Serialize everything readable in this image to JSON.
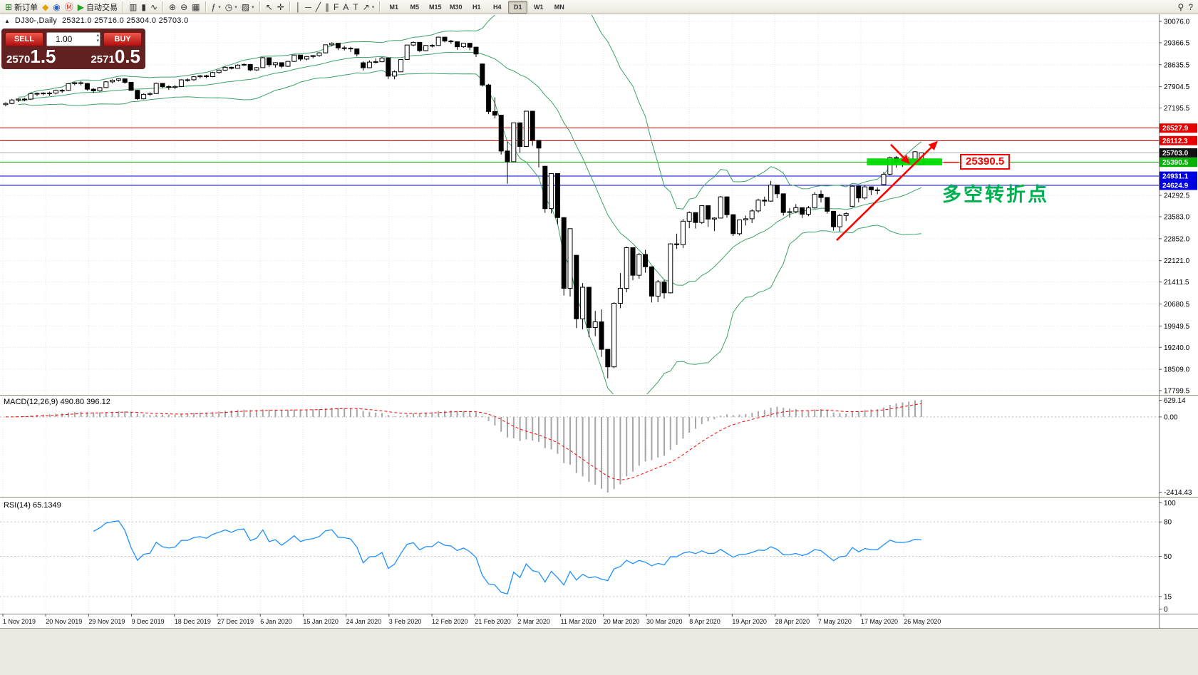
{
  "window": {
    "toolbar": {
      "items": [
        {
          "name": "new-order",
          "glyph": "⊞",
          "color": "#1A7A1A",
          "label": "新订单"
        },
        {
          "name": "mql5-market",
          "glyph": "◆",
          "color": "#E8A000"
        },
        {
          "name": "community",
          "glyph": "◉",
          "color": "#2860C8"
        },
        {
          "name": "metaquotes",
          "glyph": "Ⓜ",
          "color": "#D03020"
        },
        {
          "name": "auto-trading",
          "glyph": "▶",
          "color": "#18A818",
          "label": "自动交易"
        },
        {
          "sep": true
        },
        {
          "name": "bar-chart",
          "glyph": "▥"
        },
        {
          "name": "candlestick-chart",
          "glyph": "▮"
        },
        {
          "name": "line-chart",
          "glyph": "∿"
        },
        {
          "sep": true
        },
        {
          "name": "zoom-in",
          "glyph": "⊕"
        },
        {
          "name": "zoom-out",
          "glyph": "⊖"
        },
        {
          "name": "tile-windows",
          "glyph": "▦"
        },
        {
          "sep": true
        },
        {
          "name": "indicators",
          "glyph": "ƒ",
          "caret": true
        },
        {
          "name": "periods",
          "glyph": "◷",
          "caret": true
        },
        {
          "name": "templates",
          "glyph": "▨",
          "caret": true
        },
        {
          "sep": true
        },
        {
          "name": "cursor",
          "glyph": "↖"
        },
        {
          "name": "crosshair",
          "glyph": "✛"
        },
        {
          "sep": true
        },
        {
          "name": "vertical-line",
          "glyph": "│"
        },
        {
          "name": "horizontal-line",
          "glyph": "─"
        },
        {
          "name": "trendline",
          "glyph": "╱"
        },
        {
          "name": "channel",
          "glyph": "∥"
        },
        {
          "name": "fibonacci",
          "glyph": "F"
        },
        {
          "name": "text",
          "glyph": "A"
        },
        {
          "name": "text-label",
          "glyph": "T"
        },
        {
          "name": "arrows-tool",
          "glyph": "↗",
          "caret": true
        },
        {
          "sep": true
        }
      ],
      "timeframes": [
        "M1",
        "M5",
        "M15",
        "M30",
        "H1",
        "H4",
        "D1",
        "W1",
        "MN"
      ],
      "active_timeframe": "D1",
      "right_items": [
        {
          "name": "search",
          "glyph": "⚲"
        },
        {
          "name": "help",
          "glyph": "?"
        }
      ]
    },
    "header": {
      "symbol_period": "DJ30-,Daily",
      "ohlc": "25321.0 25716.0 25304.0 25703.0"
    },
    "order_panel": {
      "sell_label": "SELL",
      "buy_label": "BUY",
      "volume": "1.00",
      "bid_small": "2570",
      "bid_big": "1.5",
      "ask_small": "2571",
      "ask_big": "0.5"
    }
  },
  "chart_data": {
    "type": "candlestick",
    "symbol": "DJ30-",
    "timeframe": "Daily",
    "last_ohlc": {
      "open": 25321.0,
      "high": 25716.0,
      "low": 25304.0,
      "close": 25703.0
    },
    "price_axis_ticks": [
      30076.0,
      29366.5,
      28635.5,
      27904.5,
      27195.5,
      24292.5,
      23583.0,
      22852.0,
      22121.0,
      21411.5,
      20680.5,
      19949.5,
      19240.0,
      18509.0,
      17799.5
    ],
    "date_axis_ticks": [
      "1 Nov 2019",
      "20 Nov 2019",
      "29 Nov 2019",
      "9 Dec 2019",
      "18 Dec 2019",
      "27 Dec 2019",
      "6 Jan 2020",
      "15 Jan 2020",
      "24 Jan 2020",
      "3 Feb 2020",
      "12 Feb 2020",
      "21 Feb 2020",
      "2 Mar 2020",
      "11 Mar 2020",
      "20 Mar 2020",
      "30 Mar 2020",
      "8 Apr 2020",
      "19 Apr 2020",
      "28 Apr 2020",
      "7 May 2020",
      "17 May 2020",
      "26 May 2020"
    ],
    "levels": [
      {
        "price": 26527.9,
        "label": "26527.9",
        "color": "#E80000",
        "box": "#E80000"
      },
      {
        "price": 26112.3,
        "label": "26112.3",
        "color": "#E80000",
        "box": "#E80000"
      },
      {
        "price": 25703.0,
        "label": "25703.0",
        "color": "#A8ACB0",
        "box": "#111111"
      },
      {
        "price": 25390.5,
        "label": "25390.5",
        "color": "#00B400",
        "box": "#00B400"
      },
      {
        "price": 24931.1,
        "label": "24931.1",
        "color": "#0000E0",
        "box": "#0000E0"
      },
      {
        "price": 24624.9,
        "label": "24624.9",
        "color": "#0000E0",
        "box": "#0000E0"
      }
    ],
    "candles_ohlc": [
      [
        27310,
        27390,
        27250,
        27347
      ],
      [
        27347,
        27500,
        27320,
        27462
      ],
      [
        27462,
        27520,
        27400,
        27493
      ],
      [
        27493,
        27530,
        27420,
        27492
      ],
      [
        27492,
        27700,
        27460,
        27675
      ],
      [
        27675,
        27710,
        27590,
        27681
      ],
      [
        27681,
        27720,
        27620,
        27691
      ],
      [
        27691,
        27740,
        27600,
        27692
      ],
      [
        27692,
        27810,
        27650,
        27784
      ],
      [
        27784,
        27820,
        27700,
        27782
      ],
      [
        27782,
        28020,
        27760,
        28005
      ],
      [
        28005,
        28060,
        27950,
        28036
      ],
      [
        28036,
        28090,
        27950,
        28012
      ],
      [
        28012,
        28030,
        27770,
        27821
      ],
      [
        27821,
        27860,
        27700,
        27766
      ],
      [
        27766,
        27900,
        27730,
        27875
      ],
      [
        27875,
        28090,
        27860,
        28066
      ],
      [
        28066,
        28150,
        28020,
        28121
      ],
      [
        28121,
        28180,
        28080,
        28164
      ],
      [
        28164,
        28180,
        28000,
        28051
      ],
      [
        28051,
        28060,
        27770,
        27783
      ],
      [
        27783,
        27800,
        27460,
        27502
      ],
      [
        27502,
        27680,
        27480,
        27650
      ],
      [
        27650,
        27720,
        27600,
        27677
      ],
      [
        27677,
        28040,
        27660,
        28015
      ],
      [
        28015,
        28020,
        27850,
        27909
      ],
      [
        27909,
        27950,
        27800,
        27881
      ],
      [
        27881,
        27960,
        27820,
        27911
      ],
      [
        27911,
        28150,
        27890,
        28132
      ],
      [
        28132,
        28180,
        28070,
        28135
      ],
      [
        28135,
        28260,
        28100,
        28235
      ],
      [
        28235,
        28300,
        28180,
        28267
      ],
      [
        28267,
        28300,
        28190,
        28239
      ],
      [
        28239,
        28400,
        28220,
        28376
      ],
      [
        28376,
        28480,
        28340,
        28455
      ],
      [
        28455,
        28580,
        28430,
        28551
      ],
      [
        28551,
        28570,
        28480,
        28515
      ],
      [
        28515,
        28650,
        28500,
        28621
      ],
      [
        28621,
        28680,
        28600,
        28645
      ],
      [
        28645,
        28660,
        28420,
        28462
      ],
      [
        28462,
        28560,
        28430,
        28538
      ],
      [
        28538,
        28890,
        28530,
        28868
      ],
      [
        28868,
        28870,
        28560,
        28634
      ],
      [
        28634,
        28720,
        28540,
        28703
      ],
      [
        28703,
        28710,
        28520,
        28583
      ],
      [
        28583,
        28760,
        28560,
        28745
      ],
      [
        28745,
        28970,
        28730,
        28956
      ],
      [
        28956,
        28960,
        28760,
        28823
      ],
      [
        28823,
        28920,
        28780,
        28907
      ],
      [
        28907,
        28960,
        28850,
        28939
      ],
      [
        28939,
        29050,
        28900,
        29030
      ],
      [
        29030,
        29300,
        29010,
        29297
      ],
      [
        29297,
        29380,
        29250,
        29348
      ],
      [
        29348,
        29350,
        29120,
        29196
      ],
      [
        29196,
        29260,
        29110,
        29186
      ],
      [
        29186,
        29230,
        29060,
        29160
      ],
      [
        29160,
        29170,
        28910,
        28989
      ],
      [
        28700,
        28750,
        28440,
        28535
      ],
      [
        28535,
        28780,
        28520,
        28722
      ],
      [
        28722,
        28840,
        28680,
        28734
      ],
      [
        28734,
        28890,
        28720,
        28859
      ],
      [
        28859,
        28860,
        28160,
        28256
      ],
      [
        28256,
        28450,
        28150,
        28399
      ],
      [
        28399,
        28820,
        28390,
        28807
      ],
      [
        28807,
        29300,
        28800,
        29290
      ],
      [
        29290,
        29410,
        29250,
        29379
      ],
      [
        29379,
        29390,
        29060,
        29102
      ],
      [
        29102,
        29290,
        29080,
        29276
      ],
      [
        29276,
        29320,
        29210,
        29277
      ],
      [
        29277,
        29570,
        29260,
        29551
      ],
      [
        29551,
        29560,
        29380,
        29423
      ],
      [
        29423,
        29460,
        29330,
        29398
      ],
      [
        29398,
        29400,
        29130,
        29232
      ],
      [
        29232,
        29360,
        29200,
        29348
      ],
      [
        29348,
        29360,
        29120,
        29219
      ],
      [
        29219,
        29230,
        28890,
        28992
      ],
      [
        28660,
        28670,
        27910,
        27960
      ],
      [
        27960,
        28000,
        26990,
        27081
      ],
      [
        27081,
        27550,
        26850,
        26957
      ],
      [
        26957,
        26960,
        25650,
        25766
      ],
      [
        25766,
        26080,
        24680,
        25409
      ],
      [
        25409,
        26710,
        25390,
        26703
      ],
      [
        26703,
        26720,
        25710,
        25917
      ],
      [
        25917,
        27100,
        25900,
        27090
      ],
      [
        27090,
        27095,
        25940,
        26121
      ],
      [
        26121,
        26130,
        25220,
        25864
      ],
      [
        25260,
        25270,
        23710,
        23851
      ],
      [
        23851,
        25030,
        23690,
        25018
      ],
      [
        25018,
        25020,
        23330,
        23553
      ],
      [
        23553,
        23560,
        20960,
        21200
      ],
      [
        21200,
        23190,
        20930,
        23185
      ],
      [
        22300,
        22310,
        19880,
        20188
      ],
      [
        20188,
        21380,
        19840,
        21237
      ],
      [
        21237,
        21240,
        19580,
        19898
      ],
      [
        19898,
        20450,
        19610,
        20087
      ],
      [
        20087,
        20500,
        18920,
        19173
      ],
      [
        19173,
        19180,
        18210,
        18591
      ],
      [
        18591,
        20740,
        18550,
        20704
      ],
      [
        20704,
        21710,
        20540,
        21200
      ],
      [
        21200,
        22590,
        21070,
        22552
      ],
      [
        22552,
        22560,
        21470,
        21636
      ],
      [
        21636,
        22380,
        21520,
        22327
      ],
      [
        22327,
        22480,
        21720,
        21917
      ],
      [
        21917,
        21920,
        20730,
        20943
      ],
      [
        20943,
        21480,
        20740,
        21413
      ],
      [
        21413,
        21480,
        20860,
        21052
      ],
      [
        21052,
        22700,
        21030,
        22679
      ],
      [
        22679,
        23020,
        22510,
        22653
      ],
      [
        22653,
        23510,
        22540,
        23433
      ],
      [
        23433,
        23760,
        23200,
        23719
      ],
      [
        23719,
        23720,
        23190,
        23390
      ],
      [
        23390,
        23960,
        23340,
        23949
      ],
      [
        23949,
        23950,
        23240,
        23504
      ],
      [
        23504,
        23560,
        23100,
        23537
      ],
      [
        23537,
        24270,
        23530,
        24242
      ],
      [
        24242,
        24250,
        23550,
        23650
      ],
      [
        23650,
        23660,
        22940,
        23018
      ],
      [
        23018,
        23490,
        22960,
        23475
      ],
      [
        23475,
        23620,
        23290,
        23515
      ],
      [
        23515,
        23830,
        23370,
        23775
      ],
      [
        23775,
        24180,
        23720,
        24133
      ],
      [
        24133,
        24250,
        23940,
        24101
      ],
      [
        24101,
        24770,
        24080,
        24633
      ],
      [
        24633,
        24640,
        24200,
        24345
      ],
      [
        24345,
        24350,
        23620,
        23723
      ],
      [
        23723,
        23870,
        23550,
        23749
      ],
      [
        23749,
        24000,
        23700,
        23883
      ],
      [
        23883,
        23890,
        23540,
        23664
      ],
      [
        23664,
        23940,
        23600,
        23875
      ],
      [
        23875,
        24400,
        23850,
        24331
      ],
      [
        24331,
        24460,
        24060,
        24221
      ],
      [
        24221,
        24230,
        23690,
        23764
      ],
      [
        23764,
        23770,
        23120,
        23247
      ],
      [
        23247,
        23680,
        23090,
        23625
      ],
      [
        23625,
        23730,
        23440,
        23685
      ],
      [
        23930,
        24620,
        23900,
        24597
      ],
      [
        24597,
        24600,
        24060,
        24206
      ],
      [
        24206,
        24630,
        24150,
        24575
      ],
      [
        24575,
        24580,
        24300,
        24474
      ],
      [
        24474,
        24560,
        24330,
        24465
      ],
      [
        24650,
        25070,
        24620,
        24995
      ],
      [
        24995,
        25580,
        24960,
        25548
      ],
      [
        25548,
        25600,
        25210,
        25400
      ],
      [
        25400,
        25480,
        25240,
        25383
      ],
      [
        25383,
        25580,
        25320,
        25475
      ],
      [
        25475,
        25760,
        25400,
        25742
      ],
      [
        25321,
        25716,
        25304,
        25703
      ]
    ],
    "indicators": {
      "bollinger": {
        "period": 20,
        "deviation": 2,
        "color": "#3AA465"
      },
      "macd": {
        "label": "MACD(12,26,9) 490.80 396.12",
        "fast": 12,
        "slow": 26,
        "smooth": 9,
        "value_main": 490.8,
        "value_signal": 396.12,
        "scale_max": 629.14,
        "scale_min": -2414.43,
        "scale_labels": [
          "629.14",
          "0.00",
          "-2414.43"
        ],
        "bar_color": "#A6A6A6",
        "signal_color": "#FF0000"
      },
      "rsi": {
        "label": "RSI(14) 65.1349",
        "period": 14,
        "value": 65.1349,
        "levels": [
          80,
          50,
          15
        ],
        "scale_labels": [
          "100",
          "80",
          "50",
          "15",
          "0"
        ],
        "line_color": "#1E90FF"
      }
    },
    "annotations": {
      "support_zone": {
        "price_top": 25520,
        "price_bottom": 25290,
        "color": "#00DC00"
      },
      "price_tag": {
        "text": "25390.5",
        "color": "#FF0000"
      },
      "turning_point": {
        "text": "多空转折点",
        "color": "#00B050"
      },
      "trend_arrow": {
        "from_price": 22800,
        "to_price": 26100,
        "color": "#FF0000"
      },
      "pullback_arrow": {
        "from_price": 25980,
        "to_price": 25330,
        "color": "#FF0000"
      }
    }
  }
}
